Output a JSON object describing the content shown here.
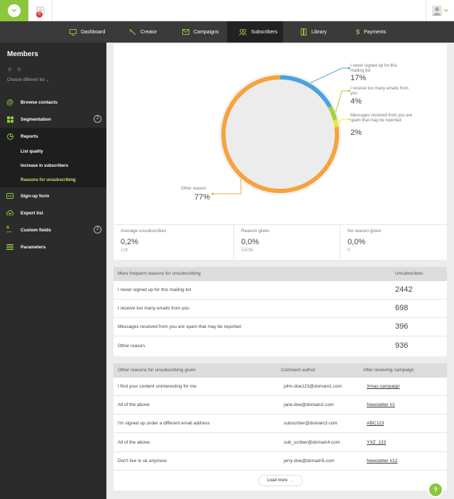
{
  "topbar": {
    "logo_icon": "bird-logo-icon",
    "notification_count": "0",
    "avatar_icon": "user-avatar-icon"
  },
  "nav": {
    "items": [
      {
        "label": "Dashboard",
        "icon": "monitor-icon"
      },
      {
        "label": "Creator",
        "icon": "wand-icon"
      },
      {
        "label": "Campaigns",
        "icon": "envelope-icon"
      },
      {
        "label": "Subscribers",
        "icon": "people-icon"
      },
      {
        "label": "Library",
        "icon": "books-icon"
      },
      {
        "label": "Payments",
        "icon": "dollar-icon"
      }
    ]
  },
  "sidebar": {
    "title": "Members",
    "stars": "☆ ☆",
    "choose_list": "Choose different list",
    "items": [
      {
        "label": "Browse contacts",
        "icon": "at-icon"
      },
      {
        "label": "Segmentation",
        "icon": "grid-icon",
        "badge": "2"
      },
      {
        "label": "Reports",
        "icon": "pie-icon"
      },
      {
        "label": "Sign-up form",
        "icon": "form-icon"
      },
      {
        "label": "Export list",
        "icon": "cloud-upload-icon"
      },
      {
        "label": "Custom fields",
        "icon": "custom-fields-icon",
        "badge": "2"
      },
      {
        "label": "Parameters",
        "icon": "menu-icon"
      }
    ],
    "report_subitems": [
      "List quality",
      "Increase in subscribers",
      "Reasons for unsubscribing"
    ]
  },
  "chart_data": {
    "type": "pie",
    "categories": [
      "I never signed up for this mailing list",
      "I receive too many emails from you",
      "Messages received from you are spam that may be reported",
      "Other reason"
    ],
    "values": [
      17,
      4,
      2,
      77
    ],
    "value_labels": [
      "17%",
      "4%",
      "2%",
      "77%"
    ],
    "colors": [
      "#4aa3df",
      "#a7d13c",
      "#e9e83a",
      "#f7a23e"
    ],
    "donut": true
  },
  "stats": [
    {
      "label": "Average unsubscribes",
      "value": "0,2%",
      "count": "129"
    },
    {
      "label": "Reason given",
      "value": "0,0%",
      "count": "14236"
    },
    {
      "label": "No reason given",
      "value": "0,0%",
      "count": "0"
    }
  ],
  "reasons_table": {
    "headers": [
      "More frequent reasons for unsubscribing",
      "Unsubscribes"
    ],
    "rows": [
      {
        "reason": "I never signed up for this mailing list",
        "count": "2442"
      },
      {
        "reason": "I receive too many emails from you",
        "count": "698"
      },
      {
        "reason": "Messages received from you are spam that may be reported",
        "count": "396"
      },
      {
        "reason": "Other reason.",
        "count": "936"
      }
    ]
  },
  "comments_table": {
    "headers": [
      "Other reasons for unsubscribing given",
      "Comment author",
      "After receiving campaign"
    ],
    "rows": [
      {
        "reason": "I find your content uninteresting for me",
        "author": "john-doe123@domain1.com",
        "campaign": "Xmas campaign"
      },
      {
        "reason": "All of the above",
        "author": "jane.doe@domain2.com",
        "campaign": "Newsletter #1"
      },
      {
        "reason": "I'm signed up under a different email address",
        "author": "subscriber@domain3.com",
        "campaign": "ABC123"
      },
      {
        "reason": "All of the above.",
        "author": "sub_scriber@domain4.com",
        "campaign": "YXZ_123"
      },
      {
        "reason": "Don't live in uk anymore",
        "author": "jerry-doe@domain5.com",
        "campaign": "Newsletter #12"
      }
    ],
    "load_more": "Load more"
  },
  "help": {
    "label": "?"
  }
}
